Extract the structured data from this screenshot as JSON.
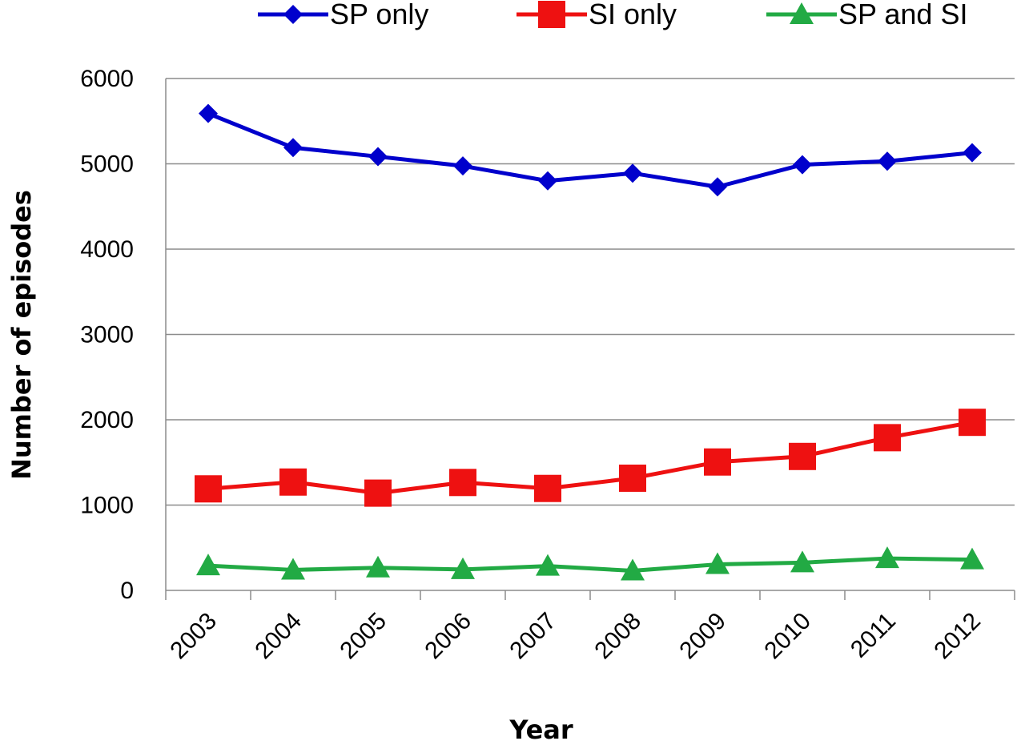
{
  "chart_data": {
    "type": "line",
    "title": "",
    "xlabel": "Year",
    "ylabel": "Number of episodes",
    "categories": [
      "2003",
      "2004",
      "2005",
      "2006",
      "2007",
      "2008",
      "2009",
      "2010",
      "2011",
      "2012"
    ],
    "ylim": [
      0,
      6000
    ],
    "yticks": [
      "0",
      "1000",
      "2000",
      "3000",
      "4000",
      "5000",
      "6000"
    ],
    "grid": "horizontal",
    "legend_position": "top",
    "series": [
      {
        "name": "SP only",
        "color": "#0000cc",
        "marker": "diamond",
        "values": [
          5590,
          5190,
          5085,
          4975,
          4800,
          4890,
          4730,
          4990,
          5030,
          5130
        ]
      },
      {
        "name": "SI only",
        "color": "#ee1111",
        "marker": "square",
        "values": [
          1190,
          1270,
          1140,
          1265,
          1195,
          1315,
          1505,
          1570,
          1790,
          1970
        ]
      },
      {
        "name": "SP and SI",
        "color": "#22aa44",
        "marker": "triangle",
        "values": [
          290,
          240,
          265,
          245,
          285,
          230,
          305,
          325,
          375,
          360
        ]
      }
    ]
  }
}
